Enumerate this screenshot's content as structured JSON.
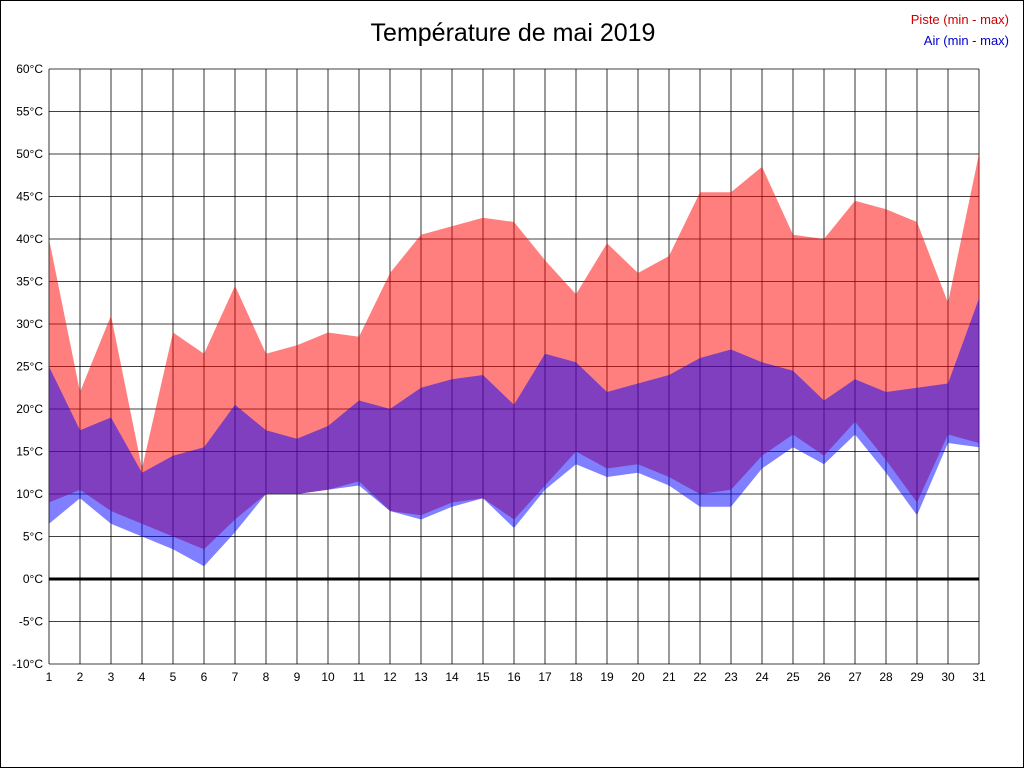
{
  "chart_data": {
    "type": "area",
    "title": "Température de mai 2019",
    "x": [
      1,
      2,
      3,
      4,
      5,
      6,
      7,
      8,
      9,
      10,
      11,
      12,
      13,
      14,
      15,
      16,
      17,
      18,
      19,
      20,
      21,
      22,
      23,
      24,
      25,
      26,
      27,
      28,
      29,
      30,
      31
    ],
    "series": [
      {
        "name": "Piste (min - max)",
        "legend_color": "#cc0000",
        "fill_color": "#ff0000",
        "fill_opacity": 0.5,
        "min": [
          9,
          10.5,
          8,
          6.5,
          5,
          3.5,
          7,
          10,
          10,
          10.5,
          11.5,
          8,
          7.5,
          9,
          9.5,
          7,
          11,
          15,
          13,
          13.5,
          12,
          10,
          10.5,
          14.5,
          17,
          14.5,
          18.5,
          14,
          9,
          17,
          16
        ],
        "max": [
          40,
          22,
          31,
          13,
          29,
          26.5,
          34.5,
          26.5,
          27.5,
          29,
          28.5,
          36,
          40.5,
          41.5,
          42.5,
          42,
          37.5,
          33.5,
          39.5,
          36,
          38,
          45.5,
          45.5,
          48.5,
          40.5,
          40,
          44.5,
          43.5,
          42,
          32.5,
          50
        ]
      },
      {
        "name": "Air (min - max)",
        "legend_color": "#0000cc",
        "fill_color": "#0000ff",
        "fill_opacity": 0.5,
        "min": [
          6.5,
          9.5,
          6.5,
          5,
          3.5,
          1.5,
          5.5,
          10,
          10,
          10.5,
          11,
          8,
          7,
          8.5,
          9.5,
          6,
          10.5,
          13.5,
          12,
          12.5,
          11,
          8.5,
          8.5,
          13,
          15.5,
          13.5,
          17,
          12.5,
          7.5,
          16,
          15.5
        ],
        "max": [
          25,
          17.5,
          19,
          12.5,
          14.5,
          15.5,
          20.5,
          17.5,
          16.5,
          18,
          21,
          20,
          22.5,
          23.5,
          24,
          20.5,
          26.5,
          25.5,
          22,
          23,
          24,
          26,
          27,
          25.5,
          24.5,
          21,
          23.5,
          22,
          22.5,
          23,
          33
        ]
      }
    ],
    "ylim": [
      -10,
      60
    ],
    "ytick_step": 5,
    "ytick_labels": [
      "60°C",
      "55°C",
      "50°C",
      "45°C",
      "40°C",
      "35°C",
      "30°C",
      "25°C",
      "20°C",
      "15°C",
      "10°C",
      "5°C",
      "0°C",
      "-5°C",
      "-10°C"
    ],
    "xtick_labels": [
      "1",
      "2",
      "3",
      "4",
      "5",
      "6",
      "7",
      "8",
      "9",
      "10",
      "11",
      "12",
      "13",
      "14",
      "15",
      "16",
      "17",
      "18",
      "19",
      "20",
      "21",
      "22",
      "23",
      "24",
      "25",
      "26",
      "27",
      "28",
      "29",
      "30",
      "31"
    ],
    "grid": true,
    "zero_line": true,
    "grid_color": "#000000",
    "zero_line_color": "#000000",
    "legend_position": "top-right"
  }
}
